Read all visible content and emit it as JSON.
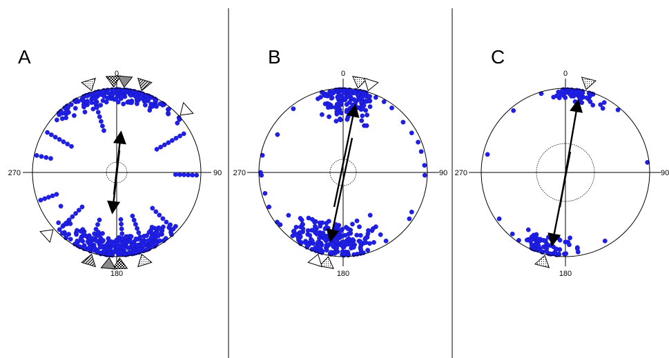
{
  "figure": {
    "colors": {
      "points": "#1f1fe8",
      "points_edge": "#1212b0",
      "frame": "#000000",
      "divider": "#000000",
      "arrow": "#000000"
    },
    "dividers": 2
  },
  "chart_data": [
    {
      "type": "scatter",
      "projection": "polar (equal-area stereonet style)",
      "title": "A",
      "azimuth_labels": [
        "0",
        "90",
        "180",
        "270"
      ],
      "reference_circle": "dotted, small",
      "mean_direction_deg": [
        4,
        184
      ],
      "point_sets": [
        {
          "center": 180,
          "spread": 48,
          "r_min": 0.72,
          "count": 260
        },
        {
          "center": 0,
          "spread": 44,
          "r_min": 0.8,
          "count": 200
        }
      ],
      "point_streaks": [
        {
          "az": 343,
          "r": [
            0.52,
            0.92
          ]
        },
        {
          "az": 300,
          "r": [
            0.62,
            0.95
          ]
        },
        {
          "az": 60,
          "r": [
            0.55,
            0.92
          ]
        },
        {
          "az": 92,
          "r": [
            0.7,
            0.95
          ]
        },
        {
          "az": 135,
          "r": [
            0.6,
            0.95
          ]
        },
        {
          "az": 160,
          "r": [
            0.55,
            0.92
          ]
        },
        {
          "az": 175,
          "r": [
            0.56,
            0.9
          ]
        },
        {
          "az": 200,
          "r": [
            0.6,
            0.95
          ]
        },
        {
          "az": 225,
          "r": [
            0.58,
            0.96
          ]
        },
        {
          "az": 250,
          "r": [
            0.76,
            0.96
          ]
        },
        {
          "az": 282,
          "r": [
            0.8,
            0.97
          ]
        }
      ],
      "markers": [
        {
          "az": 343,
          "style": "dotted"
        },
        {
          "az": 358,
          "style": "checkered"
        },
        {
          "az": 5,
          "style": "grey"
        },
        {
          "az": 17,
          "style": "hatched"
        },
        {
          "az": 48,
          "style": "open"
        },
        {
          "az": 163,
          "style": "dotted"
        },
        {
          "az": 178,
          "style": "checkered"
        },
        {
          "az": 185,
          "style": "grey"
        },
        {
          "az": 197,
          "style": "hatched"
        },
        {
          "az": 228,
          "style": "open"
        }
      ]
    },
    {
      "type": "scatter",
      "projection": "polar (equal-area stereonet style)",
      "title": "B",
      "azimuth_labels": [
        "0",
        "90",
        "180",
        "270"
      ],
      "reference_circle": "dotted, small",
      "mean_direction_deg": [
        14,
        194
      ],
      "point_sets": [
        {
          "center": 190,
          "spread": 40,
          "r_min": 0.55,
          "count": 210
        },
        {
          "center": 3,
          "spread": 22,
          "r_min": 0.58,
          "count": 150
        }
      ],
      "scattered_points": [
        {
          "az": 300,
          "r": 0.9
        },
        {
          "az": 282,
          "r": 0.98
        },
        {
          "az": 268,
          "r": 0.97
        },
        {
          "az": 255,
          "r": 0.96
        },
        {
          "az": 245,
          "r": 0.97
        },
        {
          "az": 233,
          "r": 0.98
        },
        {
          "az": 60,
          "r": 0.94
        },
        {
          "az": 68,
          "r": 0.96
        },
        {
          "az": 75,
          "r": 0.96
        },
        {
          "az": 85,
          "r": 0.97
        },
        {
          "az": 92,
          "r": 0.97
        },
        {
          "az": 120,
          "r": 0.94
        },
        {
          "az": 125,
          "r": 0.96
        },
        {
          "az": 50,
          "r": 0.93
        },
        {
          "az": 37,
          "r": 0.96
        },
        {
          "az": 30,
          "r": 0.97
        },
        {
          "az": 322,
          "r": 0.96
        },
        {
          "az": 270,
          "r": 0.98
        },
        {
          "az": 148,
          "r": 0.96
        }
      ],
      "markers": [
        {
          "az": 10,
          "style": "dotted"
        },
        {
          "az": 17,
          "style": "open"
        },
        {
          "az": 190,
          "style": "dotted"
        },
        {
          "az": 197,
          "style": "open"
        }
      ]
    },
    {
      "type": "scatter",
      "projection": "polar (equal-area stereonet style)",
      "title": "C",
      "azimuth_labels": [
        "0",
        "90",
        "180",
        "270"
      ],
      "reference_circle": "dotted, large",
      "mean_direction_deg": [
        13,
        193
      ],
      "point_sets": [
        {
          "center": 8,
          "spread": 18,
          "r_min": 0.84,
          "count": 60
        },
        {
          "center": 193,
          "spread": 24,
          "r_min": 0.78,
          "count": 70
        }
      ],
      "scattered_points": [
        {
          "az": 343,
          "r": 0.98
        },
        {
          "az": 355,
          "r": 0.96
        },
        {
          "az": 320,
          "r": 0.96
        },
        {
          "az": 29,
          "r": 0.95
        },
        {
          "az": 40,
          "r": 0.97
        },
        {
          "az": 83,
          "r": 0.98
        },
        {
          "az": 150,
          "r": 0.94
        },
        {
          "az": 235,
          "r": 0.96
        },
        {
          "az": 283,
          "r": 0.95
        },
        {
          "az": 176,
          "r": 0.78
        },
        {
          "az": 177,
          "r": 0.86
        },
        {
          "az": 200,
          "r": 0.93
        }
      ],
      "markers": [
        {
          "az": 14,
          "style": "dotted"
        },
        {
          "az": 194,
          "style": "dotted"
        }
      ]
    }
  ]
}
